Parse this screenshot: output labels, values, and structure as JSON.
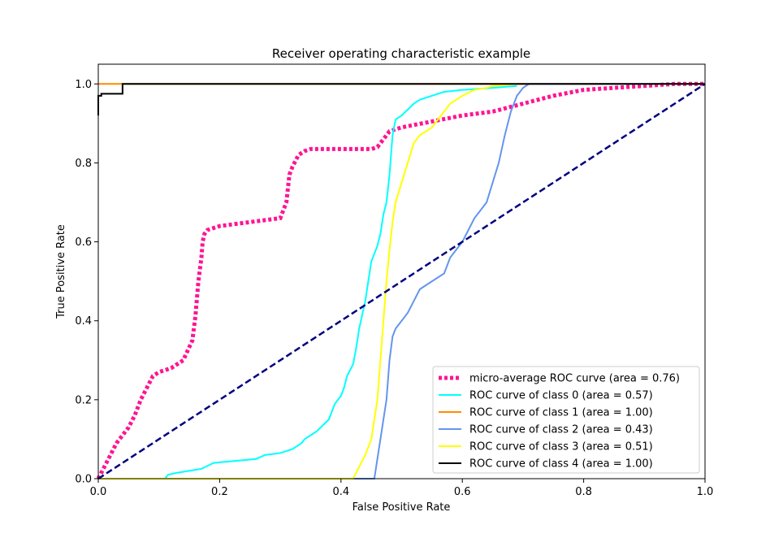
{
  "chart_data": {
    "type": "line",
    "title": "Receiver operating characteristic example",
    "xlabel": "False Positive Rate",
    "ylabel": "True Positive Rate",
    "xlim": [
      0.0,
      1.0
    ],
    "ylim": [
      0.0,
      1.05
    ],
    "xticks": [
      "0.0",
      "0.2",
      "0.4",
      "0.6",
      "0.8",
      "1.0"
    ],
    "yticks": [
      "0.0",
      "0.2",
      "0.4",
      "0.6",
      "0.8",
      "1.0"
    ],
    "grid": false,
    "legend_position": "lower-right",
    "diagonal": {
      "x": [
        0,
        1
      ],
      "y": [
        0,
        1
      ],
      "color": "#000080",
      "style": "dashed"
    },
    "series": [
      {
        "name": "micro-average ROC curve (area = 0.76)",
        "color": "#ff1493",
        "style": "dotted",
        "x": [
          0.0,
          0.01,
          0.02,
          0.03,
          0.04,
          0.05,
          0.06,
          0.07,
          0.08,
          0.09,
          0.1,
          0.12,
          0.14,
          0.155,
          0.16,
          0.165,
          0.17,
          0.172,
          0.175,
          0.18,
          0.19,
          0.2,
          0.25,
          0.3,
          0.31,
          0.315,
          0.32,
          0.33,
          0.34,
          0.35,
          0.45,
          0.46,
          0.47,
          0.48,
          0.5,
          0.55,
          0.6,
          0.65,
          0.7,
          0.75,
          0.8,
          0.85,
          0.9,
          0.95,
          1.0
        ],
        "y": [
          0.0,
          0.03,
          0.06,
          0.09,
          0.11,
          0.13,
          0.16,
          0.2,
          0.23,
          0.26,
          0.27,
          0.28,
          0.3,
          0.35,
          0.41,
          0.5,
          0.56,
          0.6,
          0.62,
          0.63,
          0.635,
          0.64,
          0.65,
          0.66,
          0.7,
          0.77,
          0.79,
          0.82,
          0.83,
          0.835,
          0.835,
          0.84,
          0.86,
          0.88,
          0.89,
          0.905,
          0.92,
          0.93,
          0.95,
          0.97,
          0.985,
          0.99,
          0.995,
          1.0,
          1.0
        ]
      },
      {
        "name": "ROC curve of class 0 (area = 0.57)",
        "color": "#00ffff",
        "style": "solid",
        "x": [
          0.0,
          0.11,
          0.115,
          0.13,
          0.17,
          0.19,
          0.26,
          0.275,
          0.3,
          0.32,
          0.335,
          0.34,
          0.36,
          0.38,
          0.385,
          0.39,
          0.4,
          0.405,
          0.41,
          0.42,
          0.425,
          0.43,
          0.44,
          0.45,
          0.46,
          0.465,
          0.47,
          0.475,
          0.48,
          0.485,
          0.49,
          0.5,
          0.51,
          0.52,
          0.53,
          0.55,
          0.57,
          0.6,
          0.65,
          0.69
        ],
        "y": [
          0.0,
          0.0,
          0.01,
          0.015,
          0.025,
          0.04,
          0.05,
          0.06,
          0.065,
          0.075,
          0.09,
          0.1,
          0.12,
          0.15,
          0.17,
          0.19,
          0.21,
          0.23,
          0.26,
          0.29,
          0.33,
          0.38,
          0.45,
          0.55,
          0.59,
          0.62,
          0.67,
          0.7,
          0.77,
          0.87,
          0.91,
          0.92,
          0.935,
          0.95,
          0.96,
          0.97,
          0.98,
          0.985,
          0.99,
          0.995
        ]
      },
      {
        "name": "ROC curve of class 1 (area = 1.00)",
        "color": "#ff8c00",
        "style": "solid",
        "x": [
          0.0,
          0.04,
          0.04,
          1.0
        ],
        "y": [
          1.0,
          1.0,
          1.0,
          1.0
        ]
      },
      {
        "name": "ROC curve of class 2 (area = 0.43)",
        "color": "#6495ed",
        "style": "solid",
        "x": [
          0.0,
          0.455,
          0.46,
          0.465,
          0.47,
          0.475,
          0.48,
          0.485,
          0.49,
          0.5,
          0.51,
          0.52,
          0.53,
          0.55,
          0.57,
          0.58,
          0.59,
          0.6,
          0.61,
          0.62,
          0.63,
          0.64,
          0.65,
          0.66,
          0.67,
          0.68,
          0.69,
          0.7,
          0.71,
          1.0
        ],
        "y": [
          0.0,
          0.0,
          0.05,
          0.1,
          0.15,
          0.2,
          0.3,
          0.36,
          0.38,
          0.4,
          0.42,
          0.45,
          0.48,
          0.5,
          0.52,
          0.56,
          0.58,
          0.6,
          0.63,
          0.66,
          0.68,
          0.7,
          0.75,
          0.8,
          0.87,
          0.93,
          0.97,
          0.99,
          1.0,
          1.0
        ]
      },
      {
        "name": "ROC curve of class 3 (area = 0.51)",
        "color": "#ffff00",
        "style": "solid",
        "x": [
          0.0,
          0.42,
          0.43,
          0.44,
          0.45,
          0.46,
          0.465,
          0.47,
          0.475,
          0.48,
          0.485,
          0.49,
          0.5,
          0.51,
          0.52,
          0.53,
          0.55,
          0.57,
          0.58,
          0.6,
          0.62,
          0.64,
          0.65,
          0.69
        ],
        "y": [
          0.0,
          0.0,
          0.03,
          0.06,
          0.1,
          0.2,
          0.3,
          0.4,
          0.5,
          0.58,
          0.65,
          0.7,
          0.75,
          0.8,
          0.85,
          0.87,
          0.89,
          0.93,
          0.95,
          0.97,
          0.985,
          0.99,
          0.995,
          1.0
        ]
      },
      {
        "name": "ROC curve of class 4 (area = 1.00)",
        "color": "#000000",
        "style": "solid",
        "x": [
          0.0,
          0.0,
          0.005,
          0.005,
          0.04,
          0.04,
          1.0
        ],
        "y": [
          0.92,
          0.97,
          0.97,
          0.975,
          0.975,
          1.0,
          1.0
        ]
      }
    ]
  }
}
